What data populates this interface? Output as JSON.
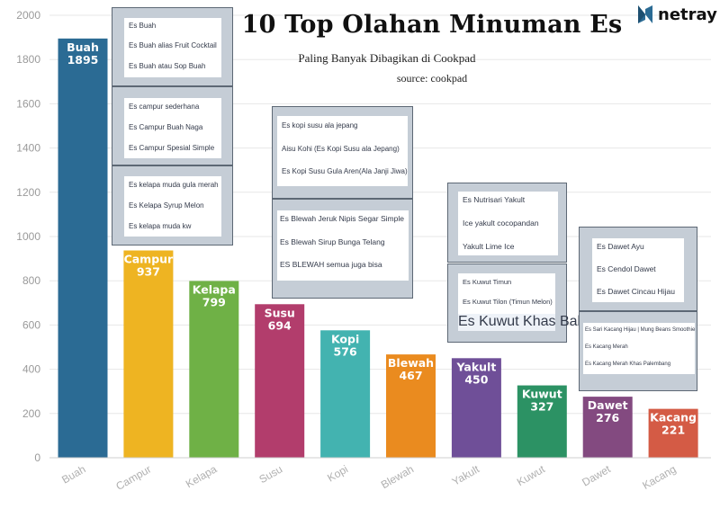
{
  "header": {
    "title": "10 Top Olahan Minuman Es",
    "subtitle": "Paling Banyak Dibagikan di Cookpad",
    "source": "source: cookpad",
    "brand": "netray"
  },
  "chart_data": {
    "type": "bar",
    "categories": [
      "Buah",
      "Campur",
      "Kelapa",
      "Susu",
      "Kopi",
      "Blewah",
      "Yakult",
      "Kuwut",
      "Dawet",
      "Kacang"
    ],
    "values": [
      1895,
      937,
      799,
      694,
      576,
      467,
      450,
      327,
      276,
      221
    ],
    "colors": [
      "#2b6b94",
      "#eeb422",
      "#6fb146",
      "#b23d6c",
      "#43b3b0",
      "#ea8b1f",
      "#6f4f98",
      "#2c9264",
      "#834a80",
      "#d45b45"
    ],
    "ylim": [
      0,
      2000
    ],
    "yticks": [
      0,
      200,
      400,
      600,
      800,
      1000,
      1200,
      1400,
      1600,
      1800,
      2000
    ],
    "grid": true
  },
  "recipe_boxes": [
    {
      "name": "buah",
      "items": [
        "Es Buah",
        "Es Buah alias Fruit Cocktail",
        "Es Buah atau Sop Buah"
      ]
    },
    {
      "name": "campur",
      "items": [
        "Es campur sederhana",
        "Es Campur Buah Naga",
        "Es Campur Spesial Simple"
      ]
    },
    {
      "name": "kelapa",
      "items": [
        "Es kelapa muda gula merah",
        "Es Kelapa Syrup Melon",
        "Es kelapa muda kw"
      ]
    },
    {
      "name": "susu",
      "items": [
        "Es kopi susu ala jepang",
        "Aisu Kohi (Es Kopi Susu ala Jepang)",
        "Es Kopi Susu Gula Aren(Ala Janji Jiwa)"
      ]
    },
    {
      "name": "blewah",
      "items": [
        "Es Blewah Jeruk Nipis Segar Simple",
        "Es Blewah Sirup Bunga Telang",
        "ES BLEWAH semua juga bisa"
      ]
    },
    {
      "name": "yakult",
      "items": [
        "Es Nutrisari Yakult",
        "Ice yakult cocopandan",
        "Yakult Lime Ice"
      ]
    },
    {
      "name": "kuwut",
      "items": [
        "Es Kuwut Timun",
        "Es Kuwut Tilon (Timun Melon)",
        "Es Kuwut Khas Bali"
      ]
    },
    {
      "name": "dawet",
      "items": [
        "Es Dawet Ayu",
        "Es Cendol Dawet",
        "Es Dawet Cincau Hijau"
      ]
    },
    {
      "name": "kacang",
      "items": [
        "Es Sari Kacang Hijau | Mung Beans Smoothie",
        "Es Kacang Merah",
        "Es Kacang Merah Khas Palembang"
      ]
    }
  ]
}
